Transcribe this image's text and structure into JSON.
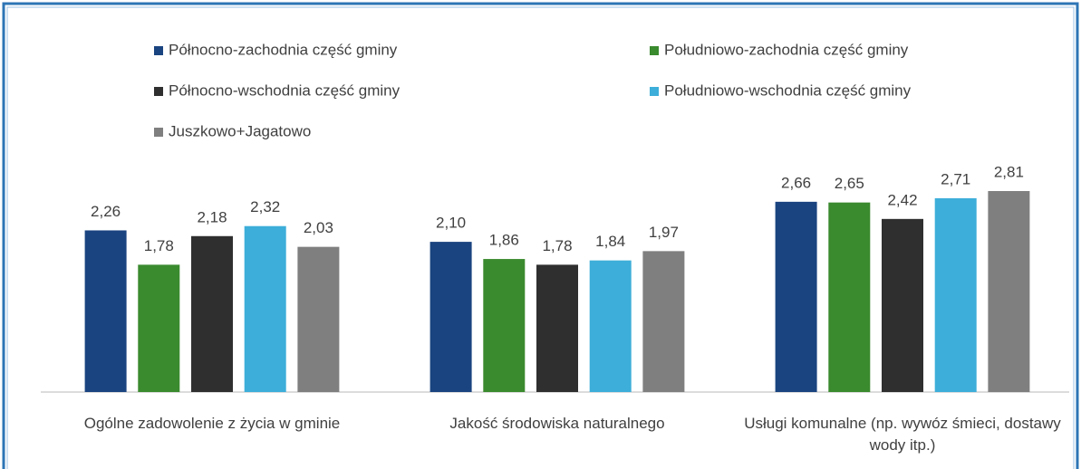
{
  "chart_data": {
    "type": "bar",
    "categories": [
      "Ogólne zadowolenie z życia w gminie",
      "Jakość środowiska naturalnego",
      "Usługi komunalne (np. wywóz śmieci, dostawy wody itp.)"
    ],
    "series": [
      {
        "name": "Północno-zachodnia część gminy",
        "color": "#1a4480",
        "values": [
          2.26,
          2.1,
          2.66
        ],
        "value_labels": [
          "2,26",
          "2,10",
          "2,66"
        ]
      },
      {
        "name": "Północno-wschodnia część gminy",
        "color": "#2f2f2f",
        "values": [
          2.18,
          1.78,
          2.42
        ],
        "value_labels": [
          "2,18",
          "1,78",
          "2,42"
        ]
      },
      {
        "name": "Juszkowo+Jagatowo",
        "color": "#7f7f7f",
        "values": [
          2.03,
          1.97,
          2.81
        ],
        "value_labels": [
          "2,03",
          "1,97",
          "2,81"
        ]
      },
      {
        "name": "Południowo-zachodnia część gminy",
        "color": "#3a8a2e",
        "values": [
          1.78,
          1.86,
          2.65
        ],
        "value_labels": [
          "1,78",
          "1,86",
          "2,65"
        ]
      },
      {
        "name": "Południowo-wschodnia część gminy",
        "color": "#3daed9",
        "values": [
          2.32,
          1.84,
          2.71
        ],
        "value_labels": [
          "2,32",
          "1,84",
          "2,71"
        ]
      }
    ],
    "bar_order": [
      0,
      3,
      1,
      4,
      2
    ],
    "ylim": [
      0,
      3
    ]
  }
}
